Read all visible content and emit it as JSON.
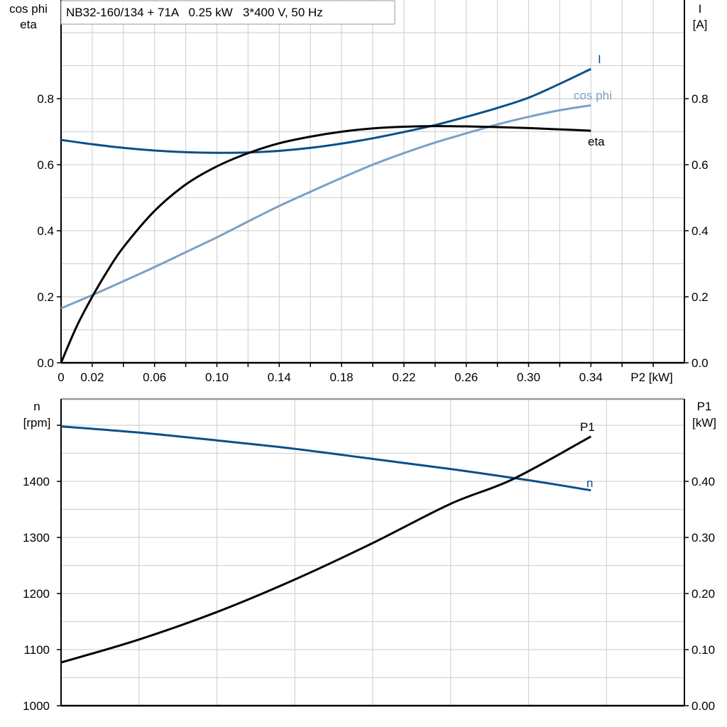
{
  "chart_data": [
    {
      "type": "line",
      "title": "NB32-160/134 + 71A   0.25 kW   3*400 V, 50 Hz",
      "xlabel": "P2 [kW]",
      "ylabel_left": [
        "cos phi",
        "eta"
      ],
      "ylabel_right": [
        "I",
        "[A]"
      ],
      "xlim": [
        0,
        0.4
      ],
      "ylim_left": [
        0,
        1.0
      ],
      "ylim_right": [
        0,
        1.0
      ],
      "x_ticks": [
        "0",
        "0.02",
        "0.06",
        "0.10",
        "0.14",
        "0.18",
        "0.22",
        "0.26",
        "0.30",
        "0.34"
      ],
      "y_ticks_left": [
        "0.0",
        "0.2",
        "0.4",
        "0.6",
        "0.8"
      ],
      "y_ticks_right": [
        "0.0",
        "0.2",
        "0.4",
        "0.6",
        "0.8"
      ],
      "grid": true,
      "series": [
        {
          "name": "I",
          "axis": "right",
          "color": "#0b4f88",
          "x": [
            0,
            0.02,
            0.04,
            0.06,
            0.08,
            0.1,
            0.12,
            0.14,
            0.16,
            0.18,
            0.2,
            0.22,
            0.24,
            0.26,
            0.28,
            0.3,
            0.32,
            0.34
          ],
          "y": [
            0.675,
            0.662,
            0.651,
            0.643,
            0.638,
            0.636,
            0.637,
            0.642,
            0.651,
            0.664,
            0.68,
            0.699,
            0.72,
            0.745,
            0.772,
            0.803,
            0.845,
            0.89
          ]
        },
        {
          "name": "cos phi",
          "axis": "left",
          "color": "#7ba0c4",
          "x": [
            0,
            0.02,
            0.04,
            0.06,
            0.08,
            0.1,
            0.12,
            0.14,
            0.16,
            0.18,
            0.2,
            0.22,
            0.24,
            0.26,
            0.28,
            0.3,
            0.32,
            0.34
          ],
          "y": [
            0.165,
            0.205,
            0.247,
            0.29,
            0.335,
            0.38,
            0.428,
            0.475,
            0.518,
            0.56,
            0.6,
            0.635,
            0.667,
            0.695,
            0.722,
            0.745,
            0.765,
            0.78
          ]
        },
        {
          "name": "eta",
          "axis": "left",
          "color": "#000000",
          "x": [
            0,
            0.01,
            0.02,
            0.03,
            0.04,
            0.06,
            0.08,
            0.1,
            0.12,
            0.14,
            0.16,
            0.18,
            0.2,
            0.22,
            0.24,
            0.26,
            0.28,
            0.3,
            0.32,
            0.34
          ],
          "y": [
            0,
            0.11,
            0.2,
            0.28,
            0.35,
            0.46,
            0.54,
            0.595,
            0.635,
            0.665,
            0.685,
            0.7,
            0.71,
            0.715,
            0.717,
            0.716,
            0.714,
            0.711,
            0.707,
            0.703
          ]
        }
      ]
    },
    {
      "type": "line",
      "xlim": [
        0,
        0.4
      ],
      "ylabel_left": [
        "n",
        "[rpm]"
      ],
      "ylabel_right": [
        "P1",
        "[kW]"
      ],
      "ylim_left": [
        1000,
        1550
      ],
      "ylim_right": [
        0,
        0.55
      ],
      "y_ticks_left": [
        "1000",
        "1100",
        "1200",
        "1300",
        "1400"
      ],
      "y_ticks_right": [
        "0.00",
        "0.10",
        "0.20",
        "0.30",
        "0.40"
      ],
      "grid": true,
      "series": [
        {
          "name": "n",
          "axis": "left",
          "color": "#0b4f88",
          "x": [
            0,
            0.05,
            0.1,
            0.15,
            0.2,
            0.25,
            0.3,
            0.34
          ],
          "y": [
            1498,
            1487,
            1473,
            1458,
            1440,
            1422,
            1402,
            1384
          ]
        },
        {
          "name": "P1",
          "axis": "right",
          "color": "#000000",
          "x": [
            0,
            0.05,
            0.1,
            0.15,
            0.2,
            0.25,
            0.29,
            0.34
          ],
          "y": [
            0.077,
            0.118,
            0.167,
            0.225,
            0.29,
            0.36,
            0.404,
            0.48
          ]
        }
      ]
    }
  ]
}
